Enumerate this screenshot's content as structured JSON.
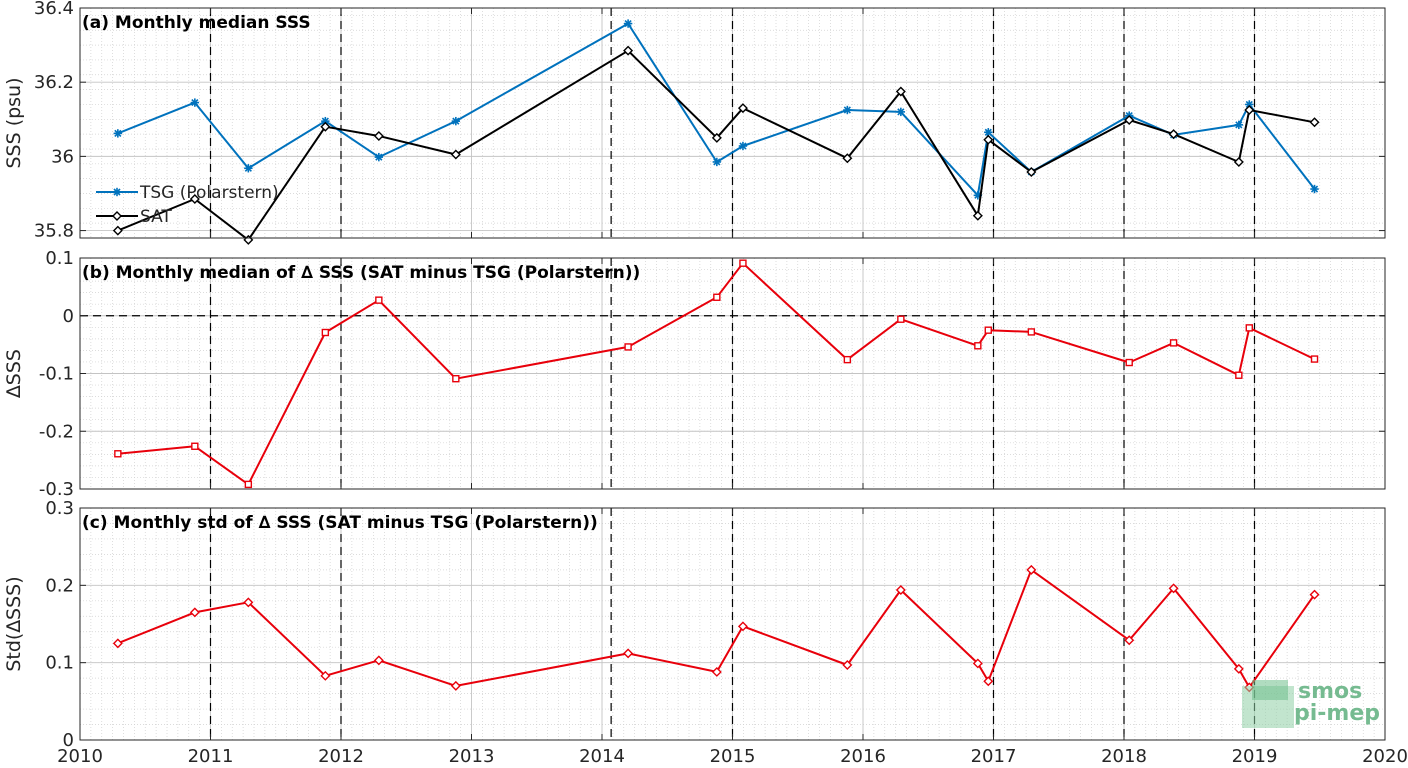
{
  "x_tick_labels": [
    "2010",
    "2011",
    "2012",
    "2013",
    "2014",
    "2015",
    "2016",
    "2017",
    "2018",
    "2019",
    "2020"
  ],
  "logo": {
    "line1": "smos",
    "line2": "pi-mep"
  },
  "colors": {
    "tsg": "#0072bd",
    "sat": "#000000",
    "delta": "#e8000b",
    "dashed": "#000000"
  },
  "chart_data": [
    {
      "type": "line",
      "title": "(a) Monthly median SSS",
      "ylabel": "SSS (psu)",
      "xlim": [
        2010,
        2020
      ],
      "ylim": [
        35.78,
        36.4
      ],
      "yticks": [
        35.8,
        36,
        36.2,
        36.4
      ],
      "ytick_labels": [
        "35.8",
        "36",
        "36.2",
        "36.4"
      ],
      "grid": true,
      "legend_position": "lower-left",
      "dashed_vlines": [
        2011.0,
        2012.0,
        2014.07,
        2015.0,
        2017.0,
        2018.0,
        2019.0
      ],
      "series": [
        {
          "name": "TSG (Polarstern)",
          "marker": "star",
          "x": [
            2010.29,
            2010.88,
            2011.29,
            2011.88,
            2012.29,
            2012.88,
            2014.2,
            2014.88,
            2015.08,
            2015.88,
            2016.29,
            2016.88,
            2016.96,
            2017.29,
            2018.04,
            2018.38,
            2018.88,
            2018.96,
            2019.46
          ],
          "y": [
            36.062,
            36.145,
            35.968,
            36.095,
            35.998,
            36.095,
            36.358,
            35.985,
            36.028,
            36.125,
            36.12,
            35.895,
            36.065,
            35.958,
            36.11,
            36.058,
            36.085,
            36.14,
            35.912
          ]
        },
        {
          "name": "SAT",
          "marker": "diamond",
          "x": [
            2010.29,
            2010.88,
            2011.29,
            2011.88,
            2012.29,
            2012.88,
            2014.2,
            2014.88,
            2015.08,
            2015.88,
            2016.29,
            2016.88,
            2016.96,
            2017.29,
            2018.04,
            2018.38,
            2018.88,
            2018.96,
            2019.46
          ],
          "y": [
            35.8,
            35.885,
            35.775,
            36.08,
            36.055,
            36.005,
            36.285,
            36.05,
            36.13,
            35.995,
            36.175,
            35.84,
            36.045,
            35.958,
            36.098,
            36.06,
            35.985,
            36.125,
            36.092
          ]
        }
      ]
    },
    {
      "type": "line",
      "title": "(b) Monthly median of ∆ SSS (SAT minus TSG (Polarstern))",
      "ylabel": "∆SSS",
      "xlim": [
        2010,
        2020
      ],
      "ylim": [
        -0.3,
        0.1
      ],
      "yticks": [
        -0.3,
        -0.2,
        -0.1,
        0,
        0.1
      ],
      "ytick_labels": [
        "-0.3",
        "-0.2",
        "-0.1",
        "0",
        "0.1"
      ],
      "grid": true,
      "zero_line": true,
      "dashed_vlines": [
        2011.0,
        2012.0,
        2014.07,
        2015.0,
        2017.0,
        2018.0,
        2019.0
      ],
      "series": [
        {
          "name": "",
          "marker": "square",
          "x": [
            2010.29,
            2010.88,
            2011.29,
            2011.88,
            2012.29,
            2012.88,
            2014.2,
            2014.88,
            2015.08,
            2015.88,
            2016.29,
            2016.88,
            2016.96,
            2017.29,
            2018.04,
            2018.38,
            2018.88,
            2018.96,
            2019.46
          ],
          "y": [
            -0.239,
            -0.226,
            -0.292,
            -0.029,
            0.027,
            -0.109,
            -0.054,
            0.032,
            0.091,
            -0.076,
            -0.006,
            -0.052,
            -0.025,
            -0.028,
            -0.081,
            -0.047,
            -0.103,
            -0.021,
            -0.075
          ]
        }
      ]
    },
    {
      "type": "line",
      "title": "(c) Monthly std of ∆ SSS (SAT minus TSG (Polarstern))",
      "ylabel": "Std(∆SSS)",
      "xlim": [
        2010,
        2020
      ],
      "ylim": [
        0,
        0.3
      ],
      "yticks": [
        0,
        0.1,
        0.2,
        0.3
      ],
      "ytick_labels": [
        "0",
        "0.1",
        "0.2",
        "0.3"
      ],
      "grid": true,
      "dashed_vlines": [
        2011.0,
        2012.0,
        2014.07,
        2015.0,
        2017.0,
        2018.0,
        2019.0
      ],
      "series": [
        {
          "name": "",
          "marker": "diamond",
          "x": [
            2010.29,
            2010.88,
            2011.29,
            2011.88,
            2012.29,
            2012.88,
            2014.2,
            2014.88,
            2015.08,
            2015.88,
            2016.29,
            2016.88,
            2016.96,
            2017.29,
            2018.04,
            2018.38,
            2018.88,
            2018.96,
            2019.46
          ],
          "y": [
            0.125,
            0.165,
            0.178,
            0.083,
            0.103,
            0.07,
            0.112,
            0.088,
            0.147,
            0.097,
            0.194,
            0.099,
            0.076,
            0.22,
            0.129,
            0.196,
            0.092,
            0.068,
            0.188
          ]
        }
      ]
    }
  ]
}
